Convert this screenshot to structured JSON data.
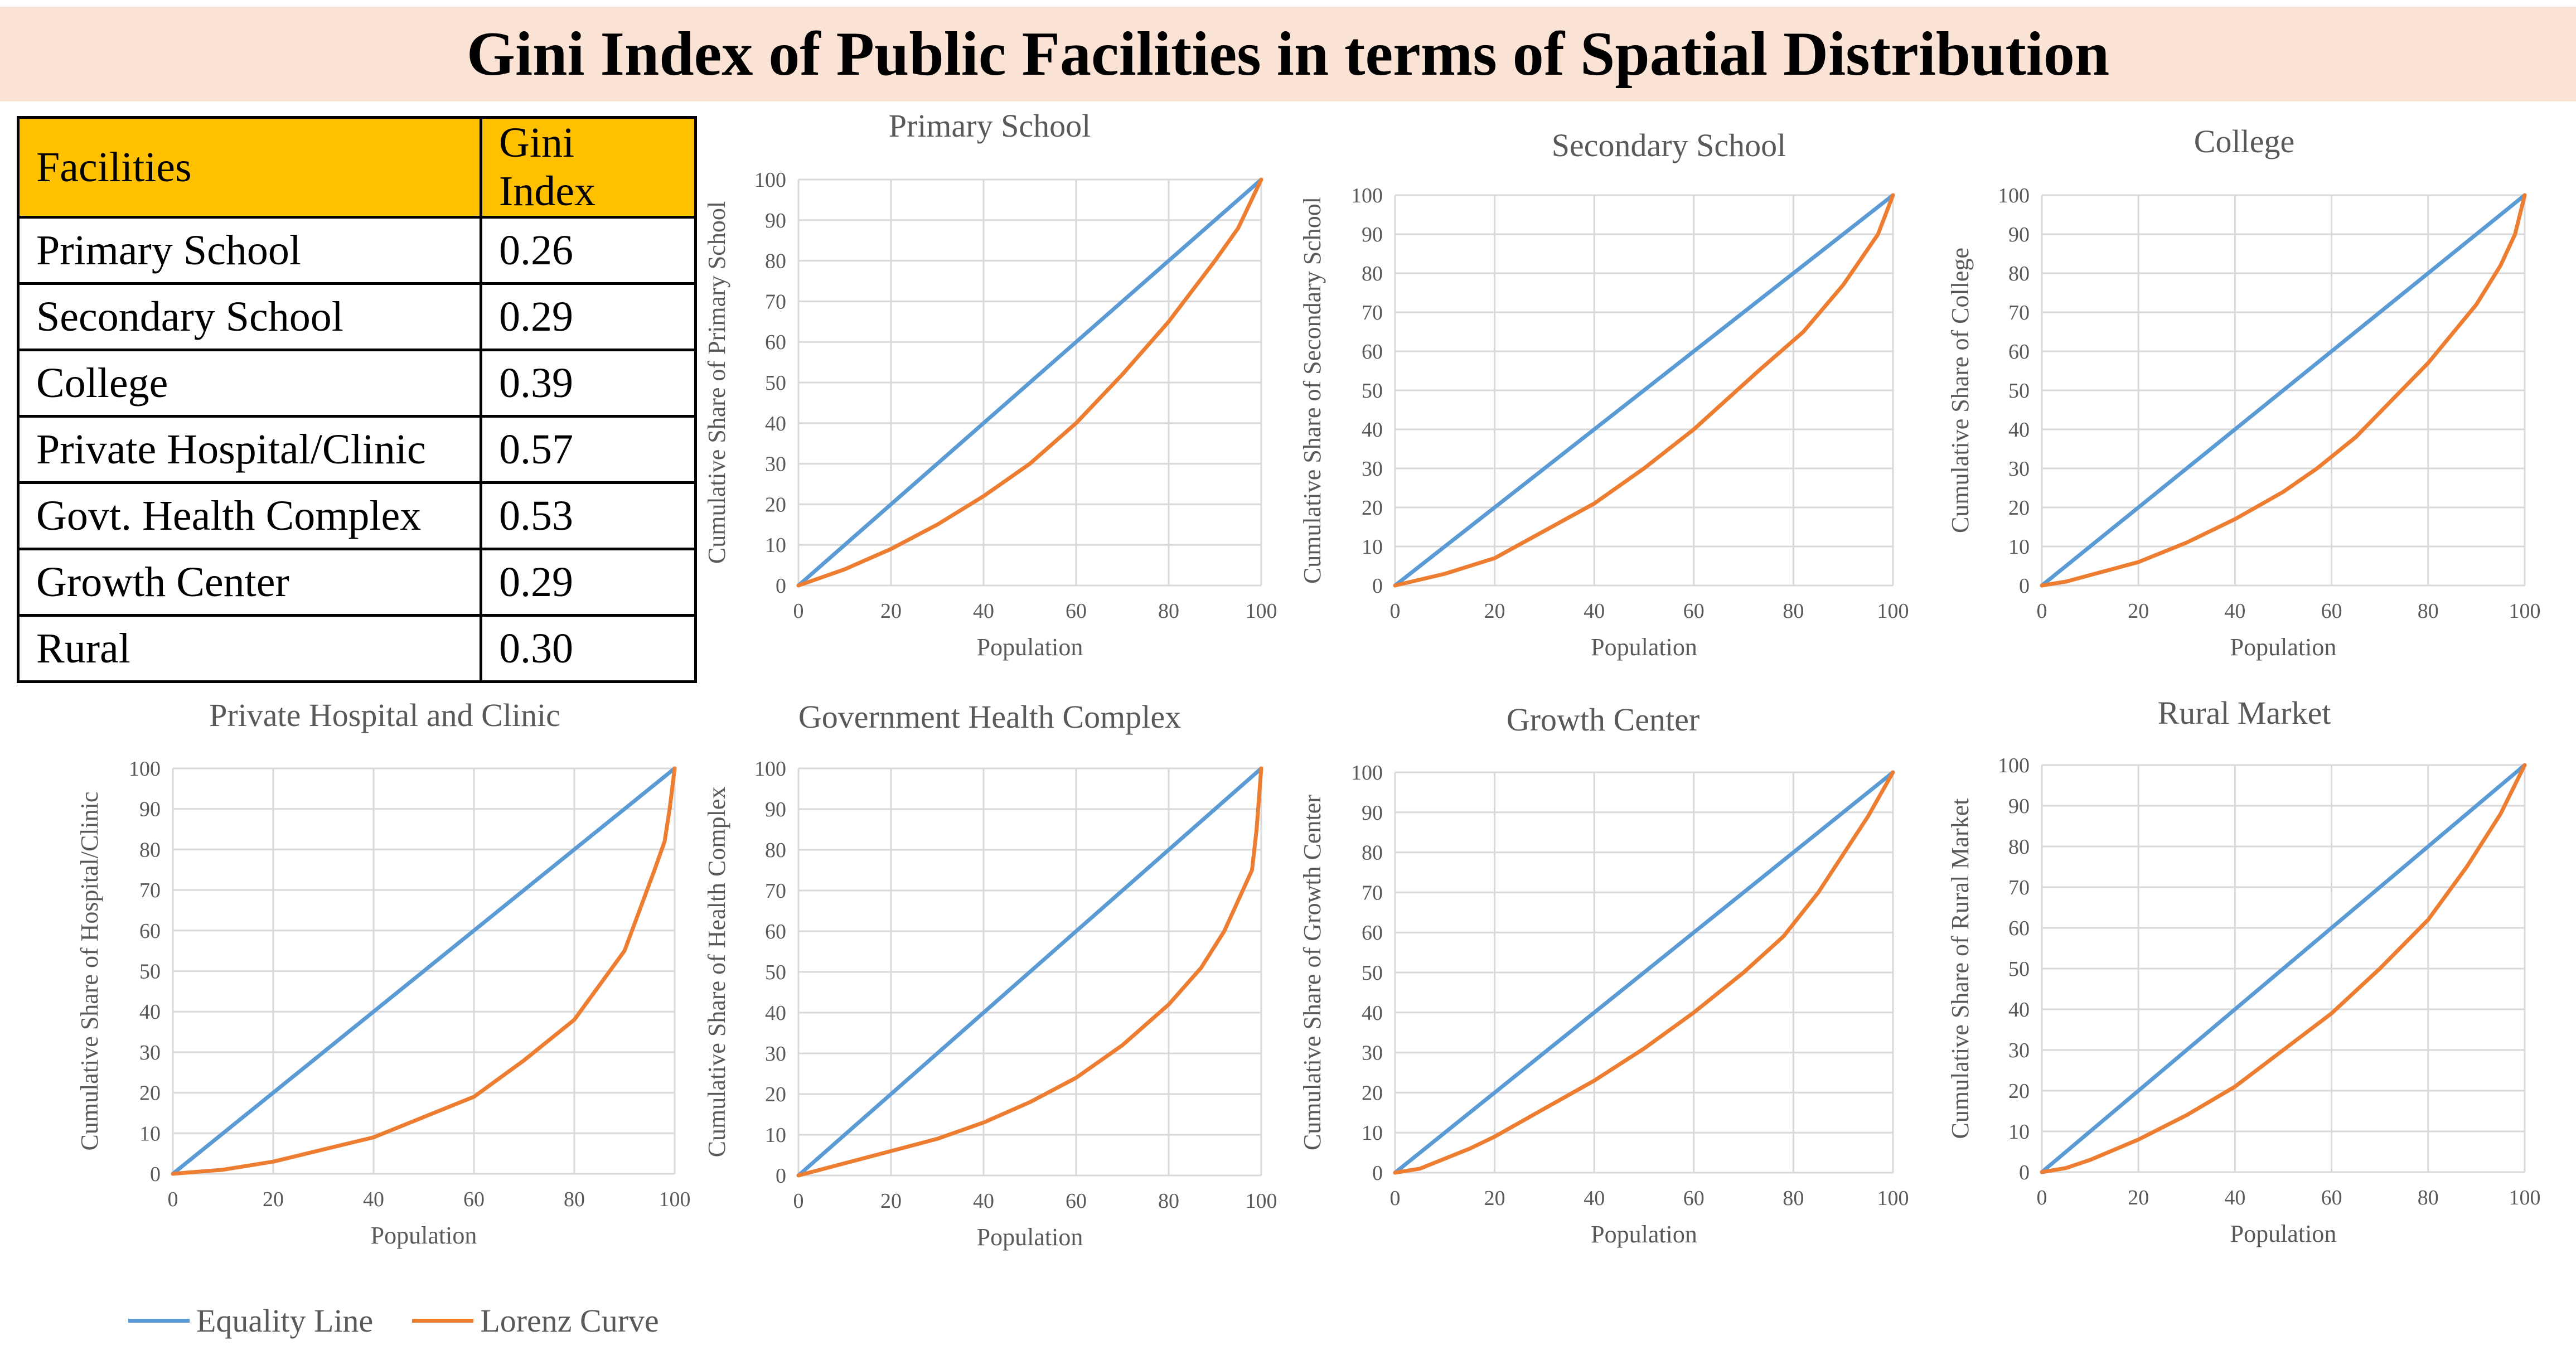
{
  "page": {
    "title": "Gini Index of Public Facilities in terms of Spatial Distribution"
  },
  "table": {
    "headers": [
      "Facilities",
      "Gini Index"
    ],
    "rows": [
      [
        "Primary School",
        "0.26"
      ],
      [
        "Secondary School",
        "0.29"
      ],
      [
        "College",
        "0.39"
      ],
      [
        "Private Hospital/Clinic",
        "0.57"
      ],
      [
        "Govt. Health Complex",
        "0.53"
      ],
      [
        "Growth Center",
        "0.29"
      ],
      [
        "Rural",
        "0.30"
      ]
    ],
    "header_color": "#ffc000"
  },
  "legend": {
    "items": [
      {
        "label": "Equality Line",
        "color": "#5b9bd5"
      },
      {
        "label": "Lorenz Curve",
        "color": "#ed7d31"
      }
    ]
  },
  "chart_data": [
    {
      "type": "line",
      "title": "Primary School",
      "xlabel": "Population",
      "ylabel": "Cumulative Share of Primary School",
      "xlim": [
        0,
        100
      ],
      "ylim": [
        0,
        100
      ],
      "xticks": [
        0,
        20,
        40,
        60,
        80,
        100
      ],
      "yticks": [
        0,
        10,
        20,
        30,
        40,
        50,
        60,
        70,
        80,
        90,
        100
      ],
      "grid": true,
      "series": [
        {
          "name": "Equality Line",
          "color": "#5b9bd5",
          "x": [
            0,
            100
          ],
          "y": [
            0,
            100
          ]
        },
        {
          "name": "Lorenz Curve",
          "color": "#ed7d31",
          "x": [
            0,
            10,
            20,
            30,
            40,
            50,
            60,
            70,
            80,
            90,
            95,
            100
          ],
          "y": [
            0,
            4,
            9,
            15,
            22,
            30,
            40,
            52,
            65,
            80,
            88,
            100
          ]
        }
      ]
    },
    {
      "type": "line",
      "title": "Secondary School",
      "xlabel": "Population",
      "ylabel": "Cumulative Share of Secondary School",
      "xlim": [
        0,
        100
      ],
      "ylim": [
        0,
        100
      ],
      "xticks": [
        0,
        20,
        40,
        60,
        80,
        100
      ],
      "yticks": [
        0,
        10,
        20,
        30,
        40,
        50,
        60,
        70,
        80,
        90,
        100
      ],
      "grid": true,
      "series": [
        {
          "name": "Equality Line",
          "color": "#5b9bd5",
          "x": [
            0,
            100
          ],
          "y": [
            0,
            100
          ]
        },
        {
          "name": "Lorenz Curve",
          "color": "#ed7d31",
          "x": [
            0,
            10,
            20,
            30,
            40,
            50,
            60,
            73,
            82,
            90,
            97,
            100
          ],
          "y": [
            0,
            3,
            7,
            14,
            21,
            30,
            40,
            55,
            65,
            77,
            90,
            100
          ]
        }
      ]
    },
    {
      "type": "line",
      "title": "College",
      "xlabel": "Population",
      "ylabel": "Cumulative Share of College",
      "xlim": [
        0,
        100
      ],
      "ylim": [
        0,
        100
      ],
      "xticks": [
        0,
        20,
        40,
        60,
        80,
        100
      ],
      "yticks": [
        0,
        10,
        20,
        30,
        40,
        50,
        60,
        70,
        80,
        90,
        100
      ],
      "grid": true,
      "series": [
        {
          "name": "Equality Line",
          "color": "#5b9bd5",
          "x": [
            0,
            100
          ],
          "y": [
            0,
            100
          ]
        },
        {
          "name": "Lorenz Curve",
          "color": "#ed7d31",
          "x": [
            0,
            5,
            20,
            30,
            40,
            50,
            57,
            65,
            80,
            90,
            95,
            98,
            100
          ],
          "y": [
            0,
            1,
            6,
            11,
            17,
            24,
            30,
            38,
            57,
            72,
            82,
            90,
            100
          ]
        }
      ]
    },
    {
      "type": "line",
      "title": "Private Hospital and Clinic",
      "xlabel": "Population",
      "ylabel": "Cumulative Share of Hospital/Clinic",
      "xlim": [
        0,
        100
      ],
      "ylim": [
        0,
        100
      ],
      "xticks": [
        0,
        20,
        40,
        60,
        80,
        100
      ],
      "yticks": [
        0,
        10,
        20,
        30,
        40,
        50,
        60,
        70,
        80,
        90,
        100
      ],
      "grid": true,
      "series": [
        {
          "name": "Equality Line",
          "color": "#5b9bd5",
          "x": [
            0,
            100
          ],
          "y": [
            0,
            100
          ]
        },
        {
          "name": "Lorenz Curve",
          "color": "#ed7d31",
          "x": [
            0,
            10,
            20,
            30,
            40,
            50,
            60,
            70,
            80,
            90,
            96,
            98,
            99,
            100
          ],
          "y": [
            0,
            1,
            3,
            6,
            9,
            14,
            19,
            28,
            38,
            55,
            75,
            82,
            90,
            100
          ]
        }
      ]
    },
    {
      "type": "line",
      "title": "Government Health Complex",
      "xlabel": "Population",
      "ylabel": "Cumulative Share of Health Complex",
      "xlim": [
        0,
        100
      ],
      "ylim": [
        0,
        100
      ],
      "xticks": [
        0,
        20,
        40,
        60,
        80,
        100
      ],
      "yticks": [
        0,
        10,
        20,
        30,
        40,
        50,
        60,
        70,
        80,
        90,
        100
      ],
      "grid": true,
      "series": [
        {
          "name": "Equality Line",
          "color": "#5b9bd5",
          "x": [
            0,
            100
          ],
          "y": [
            0,
            100
          ]
        },
        {
          "name": "Lorenz Curve",
          "color": "#ed7d31",
          "x": [
            0,
            10,
            20,
            30,
            40,
            50,
            60,
            70,
            80,
            87,
            92,
            96,
            98,
            99,
            100
          ],
          "y": [
            0,
            3,
            6,
            9,
            13,
            18,
            24,
            32,
            42,
            51,
            60,
            70,
            75,
            85,
            100
          ]
        }
      ]
    },
    {
      "type": "line",
      "title": "Growth Center",
      "xlabel": "Population",
      "ylabel": "Cumulative Share of Growth Center",
      "xlim": [
        0,
        100
      ],
      "ylim": [
        0,
        100
      ],
      "xticks": [
        0,
        20,
        40,
        60,
        80,
        100
      ],
      "yticks": [
        0,
        10,
        20,
        30,
        40,
        50,
        60,
        70,
        80,
        90,
        100
      ],
      "grid": true,
      "series": [
        {
          "name": "Equality Line",
          "color": "#5b9bd5",
          "x": [
            0,
            100
          ],
          "y": [
            0,
            100
          ]
        },
        {
          "name": "Lorenz Curve",
          "color": "#ed7d31",
          "x": [
            0,
            5,
            15,
            20,
            30,
            40,
            50,
            60,
            70,
            78,
            85,
            95,
            100
          ],
          "y": [
            0,
            1,
            6,
            9,
            16,
            23,
            31,
            40,
            50,
            59,
            70,
            89,
            100
          ]
        }
      ]
    },
    {
      "type": "line",
      "title": "Rural Market",
      "xlabel": "Population",
      "ylabel": "Cumulative Share of Rural Market",
      "xlim": [
        0,
        100
      ],
      "ylim": [
        0,
        100
      ],
      "xticks": [
        0,
        20,
        40,
        60,
        80,
        100
      ],
      "yticks": [
        0,
        10,
        20,
        30,
        40,
        50,
        60,
        70,
        80,
        90,
        100
      ],
      "grid": true,
      "series": [
        {
          "name": "Equality Line",
          "color": "#5b9bd5",
          "x": [
            0,
            100
          ],
          "y": [
            0,
            100
          ]
        },
        {
          "name": "Lorenz Curve",
          "color": "#ed7d31",
          "x": [
            0,
            5,
            10,
            20,
            30,
            40,
            50,
            60,
            70,
            80,
            88,
            95,
            100
          ],
          "y": [
            0,
            1,
            3,
            8,
            14,
            21,
            30,
            39,
            50,
            62,
            75,
            88,
            100
          ]
        }
      ]
    }
  ]
}
